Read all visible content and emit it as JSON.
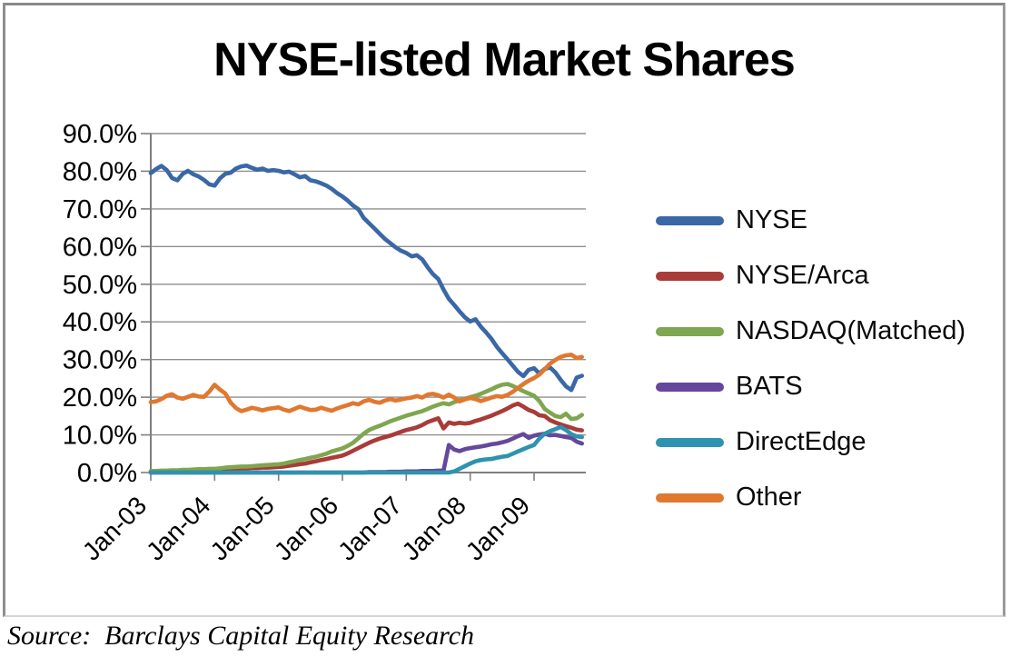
{
  "chart": {
    "title": "NYSE-listed Market Shares",
    "source_note": "Source:  Barclays Capital Equity Research"
  },
  "chart_data": {
    "type": "line",
    "title": "NYSE-listed Market Shares",
    "x_unit": "month",
    "x_start": "Jan-03",
    "x_end": "Oct-09",
    "ylim": [
      0,
      90
    ],
    "grid": true,
    "legend_position": "right",
    "axis_color": "#7f7f7f",
    "gridline_color": "#8f8f8f",
    "xticks": [
      {
        "month": 0,
        "label": "Jan-03"
      },
      {
        "month": 12,
        "label": "Jan-04"
      },
      {
        "month": 24,
        "label": "Jan-05"
      },
      {
        "month": 36,
        "label": "Jan-06"
      },
      {
        "month": 48,
        "label": "Jan-07"
      },
      {
        "month": 60,
        "label": "Jan-08"
      },
      {
        "month": 72,
        "label": "Jan-09"
      }
    ],
    "yticks": [
      {
        "value": 90,
        "label": "90.0%"
      },
      {
        "value": 80,
        "label": "80.0%"
      },
      {
        "value": 70,
        "label": "70.0%"
      },
      {
        "value": 60,
        "label": "60.0%"
      },
      {
        "value": 50,
        "label": "50.0%"
      },
      {
        "value": 40,
        "label": "40.0%"
      },
      {
        "value": 30,
        "label": "30.0%"
      },
      {
        "value": 20,
        "label": "20.0%"
      },
      {
        "value": 10,
        "label": "10.0%"
      },
      {
        "value": 0,
        "label": "0.0%"
      }
    ],
    "series": [
      {
        "name": "NYSE",
        "color": "#3A67A6",
        "values": [
          79.5,
          80.6,
          81.4,
          80.3,
          78.2,
          77.6,
          79.3,
          80.1,
          79.2,
          78.6,
          77.7,
          76.5,
          76.2,
          78.1,
          79.3,
          79.6,
          80.7,
          81.3,
          81.5,
          80.9,
          80.4,
          80.7,
          80.1,
          80.3,
          80.1,
          79.7,
          79.9,
          79.2,
          78.4,
          78.7,
          77.6,
          77.3,
          76.8,
          76.2,
          75.3,
          74.2,
          73.3,
          72.2,
          70.9,
          69.9,
          67.6,
          66.2,
          64.8,
          63.4,
          62.0,
          60.9,
          59.8,
          58.9,
          58.3,
          57.4,
          57.7,
          56.6,
          54.5,
          52.7,
          51.4,
          48.6,
          46.1,
          44.5,
          42.8,
          41.2,
          40.1,
          40.7,
          38.7,
          37.2,
          35.5,
          33.4,
          31.7,
          30.1,
          28.4,
          26.7,
          25.6,
          27.3,
          27.7,
          26.3,
          27.5,
          27.9,
          26.6,
          24.6,
          22.9,
          21.9,
          25.2,
          25.7
        ]
      },
      {
        "name": "NYSE/Arca",
        "color": "#A93B38",
        "values": [
          0.3,
          0.3,
          0.3,
          0.4,
          0.4,
          0.5,
          0.5,
          0.6,
          0.6,
          0.7,
          0.7,
          0.8,
          0.8,
          0.9,
          0.9,
          1.0,
          1.0,
          1.1,
          1.1,
          1.2,
          1.2,
          1.3,
          1.3,
          1.4,
          1.5,
          1.6,
          1.8,
          2.0,
          2.2,
          2.4,
          2.7,
          3.0,
          3.3,
          3.6,
          3.9,
          4.2,
          4.5,
          5.1,
          5.8,
          6.5,
          7.2,
          7.9,
          8.5,
          9.0,
          9.4,
          9.8,
          10.3,
          10.8,
          11.3,
          11.6,
          12.0,
          12.6,
          13.4,
          13.9,
          14.4,
          11.7,
          13.3,
          12.9,
          13.2,
          13.0,
          13.2,
          13.7,
          14.1,
          14.6,
          15.1,
          15.7,
          16.3,
          17.0,
          17.8,
          18.3,
          17.5,
          16.6,
          16.1,
          15.2,
          15.0,
          13.9,
          13.3,
          12.8,
          12.3,
          11.9,
          11.4,
          11.2
        ]
      },
      {
        "name": "NASDAQ(Matched)",
        "color": "#7FA650",
        "values": [
          0.4,
          0.4,
          0.5,
          0.5,
          0.6,
          0.6,
          0.7,
          0.7,
          0.8,
          0.9,
          0.9,
          1.0,
          1.0,
          1.1,
          1.3,
          1.4,
          1.5,
          1.6,
          1.6,
          1.7,
          1.8,
          1.9,
          2.0,
          2.1,
          2.2,
          2.4,
          2.7,
          3.0,
          3.3,
          3.6,
          3.9,
          4.2,
          4.6,
          5.0,
          5.6,
          6.0,
          6.4,
          7.1,
          7.9,
          9.1,
          10.3,
          11.3,
          11.9,
          12.4,
          13.0,
          13.6,
          14.1,
          14.6,
          15.1,
          15.5,
          15.9,
          16.3,
          16.9,
          17.5,
          18.0,
          18.4,
          18.1,
          18.7,
          19.2,
          19.6,
          20.0,
          20.4,
          20.9,
          21.5,
          22.1,
          22.8,
          23.3,
          23.5,
          23.0,
          22.3,
          21.6,
          21.0,
          20.4,
          19.0,
          16.9,
          15.9,
          15.0,
          14.7,
          15.6,
          14.2,
          14.4,
          15.3
        ]
      },
      {
        "name": "BATS",
        "color": "#65489B",
        "values": [
          0,
          0,
          0,
          0,
          0,
          0,
          0,
          0,
          0,
          0,
          0,
          0,
          0,
          0,
          0,
          0,
          0,
          0,
          0,
          0,
          0,
          0,
          0,
          0,
          0,
          0,
          0,
          0,
          0,
          0,
          0,
          0,
          0,
          0,
          0,
          0,
          0,
          0,
          0,
          0,
          0,
          0.1,
          0.1,
          0.1,
          0.1,
          0.2,
          0.2,
          0.2,
          0.3,
          0.3,
          0.3,
          0.4,
          0.4,
          0.4,
          0.5,
          0.5,
          7.3,
          6.1,
          5.7,
          6.2,
          6.5,
          6.7,
          6.9,
          7.2,
          7.5,
          7.7,
          8.0,
          8.4,
          9.0,
          9.7,
          10.2,
          9.2,
          9.8,
          10.1,
          10.3,
          9.9,
          10.0,
          9.7,
          9.4,
          9.2,
          8.2,
          7.7
        ]
      },
      {
        "name": "DirectEdge",
        "color": "#2E93AE",
        "values": [
          0,
          0,
          0,
          0,
          0,
          0,
          0,
          0,
          0,
          0,
          0,
          0,
          0,
          0,
          0,
          0,
          0,
          0,
          0,
          0,
          0,
          0,
          0,
          0,
          0,
          0,
          0,
          0,
          0,
          0,
          0,
          0,
          0,
          0,
          0,
          0,
          0,
          0,
          0,
          0,
          0,
          0,
          0,
          0,
          0,
          0,
          0,
          0,
          0,
          0,
          0,
          0,
          0,
          0,
          0,
          0,
          0,
          0.3,
          1.0,
          1.7,
          2.4,
          3.0,
          3.3,
          3.5,
          3.6,
          3.9,
          4.2,
          4.4,
          5.0,
          5.6,
          6.2,
          6.8,
          7.3,
          9.0,
          10.3,
          11.0,
          11.5,
          12.1,
          11.3,
          10.2,
          9.6,
          9.4
        ]
      },
      {
        "name": "Other",
        "color": "#E0782F",
        "values": [
          18.7,
          18.9,
          19.5,
          20.4,
          20.8,
          19.9,
          19.6,
          20.1,
          20.6,
          20.2,
          20.1,
          21.5,
          23.3,
          22.0,
          21.0,
          18.6,
          17.1,
          16.3,
          16.7,
          17.2,
          16.9,
          16.5,
          16.9,
          17.1,
          17.3,
          16.7,
          16.3,
          16.9,
          17.5,
          17.0,
          16.6,
          16.7,
          17.2,
          16.8,
          16.4,
          17.0,
          17.5,
          17.9,
          18.4,
          18.1,
          18.9,
          19.3,
          18.8,
          18.5,
          19.1,
          19.5,
          19.1,
          19.4,
          19.7,
          19.9,
          20.3,
          19.9,
          20.7,
          20.9,
          20.5,
          19.9,
          20.7,
          19.9,
          18.9,
          19.4,
          19.8,
          19.5,
          19.0,
          19.4,
          19.9,
          20.3,
          20.1,
          20.6,
          21.4,
          22.5,
          23.5,
          24.4,
          25.1,
          26.0,
          27.4,
          28.9,
          29.9,
          30.7,
          31.1,
          31.3,
          30.4,
          30.7
        ]
      }
    ]
  }
}
